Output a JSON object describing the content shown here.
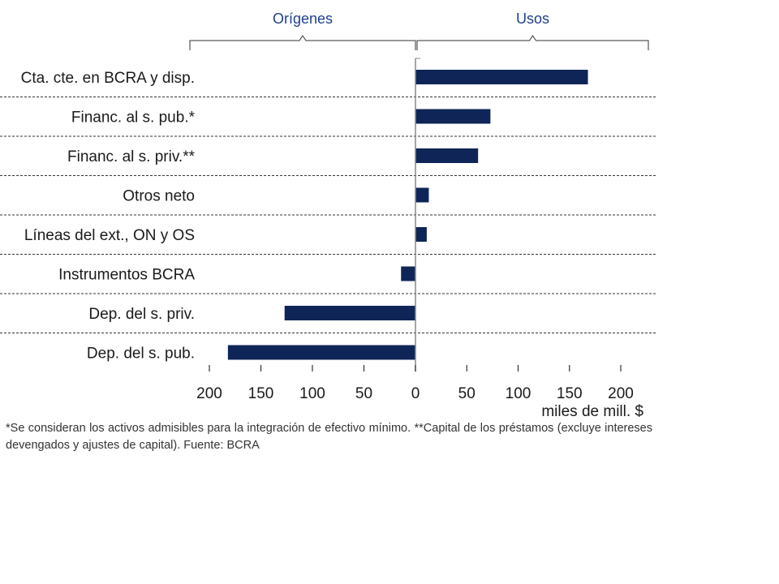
{
  "colors": {
    "bar": "#0f2557",
    "section_label": "#1f3f8f",
    "bracket": "#333333",
    "grid": "#333333",
    "axis": "#888888"
  },
  "chart_data": {
    "type": "bar",
    "orientation": "horizontal",
    "categories": [
      "Cta. cte. en BCRA y disp.",
      "Financ. al s. pub.*",
      "Financ. al s. priv.**",
      "Otros neto",
      "Líneas del ext., ON y OS",
      "Instrumentos BCRA",
      "Dep. del s. priv.",
      "Dep. del s. pub."
    ],
    "values": [
      168,
      73,
      61,
      13,
      11,
      -14,
      -127,
      -182
    ],
    "xlim": [
      -200,
      200
    ],
    "xticks": [
      -200,
      -150,
      -100,
      -50,
      0,
      50,
      100,
      150,
      200
    ],
    "xtick_labels": [
      "200",
      "150",
      "100",
      "50",
      "0",
      "50",
      "100",
      "150",
      "200"
    ],
    "xlabel": "miles de mill. $",
    "sections": [
      {
        "label": "Orígenes",
        "range": [
          -200,
          0
        ]
      },
      {
        "label": "Usos",
        "range": [
          0,
          200
        ]
      }
    ],
    "grid": "dashed horizontal separators between categories",
    "legend": "none"
  },
  "footnote": "*Se consideran los activos admisibles para la integración de efectivo mínimo. **Capital de los préstamos (excluye intereses devengados y ajustes de capital). Fuente: BCRA"
}
